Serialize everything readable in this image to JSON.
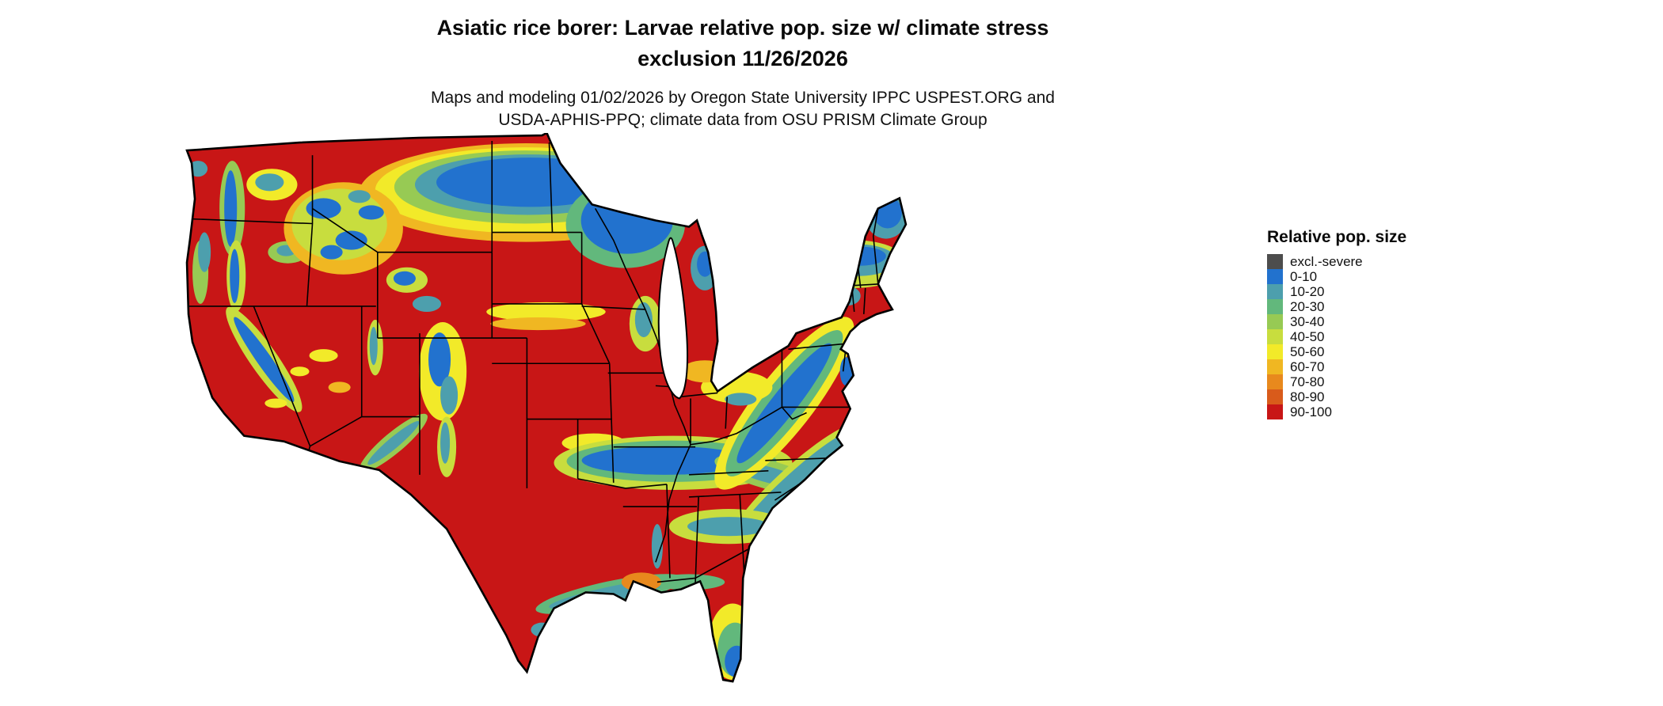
{
  "header": {
    "title_line1": "Asiatic rice borer: Larvae relative pop. size w/ climate stress",
    "title_line2": "exclusion 11/26/2026",
    "subtitle_line1": "Maps and modeling 01/02/2026 by Oregon State University IPPC USPEST.ORG and",
    "subtitle_line2": "USDA-APHIS-PPQ; climate data from OSU PRISM Climate Group"
  },
  "map": {
    "region": "Continental United States",
    "type": "raster risk map with state boundaries",
    "outline_color": "#000000",
    "background_color": "#ffffff",
    "base_class": "90-100"
  },
  "palette": {
    "excl_severe": "#4d4d4d",
    "r0_10": "#2272ce",
    "r10_20": "#4d9fad",
    "r20_30": "#62b87c",
    "r30_40": "#97ca54",
    "r40_50": "#c8dd3e",
    "r50_60": "#f2ea29",
    "r60_70": "#f0b722",
    "r70_80": "#e8891d",
    "r80_90": "#d95b1b",
    "r90_100": "#c81616"
  },
  "legend": {
    "title": "Relative pop. size",
    "entries": [
      {
        "label": "excl.-severe",
        "key": "excl_severe"
      },
      {
        "label": "0-10",
        "key": "r0_10"
      },
      {
        "label": "10-20",
        "key": "r10_20"
      },
      {
        "label": "20-30",
        "key": "r20_30"
      },
      {
        "label": "30-40",
        "key": "r30_40"
      },
      {
        "label": "40-50",
        "key": "r40_50"
      },
      {
        "label": "50-60",
        "key": "r50_60"
      },
      {
        "label": "60-70",
        "key": "r60_70"
      },
      {
        "label": "70-80",
        "key": "r70_80"
      },
      {
        "label": "80-90",
        "key": "r80_90"
      },
      {
        "label": "90-100",
        "key": "r90_100"
      }
    ]
  }
}
